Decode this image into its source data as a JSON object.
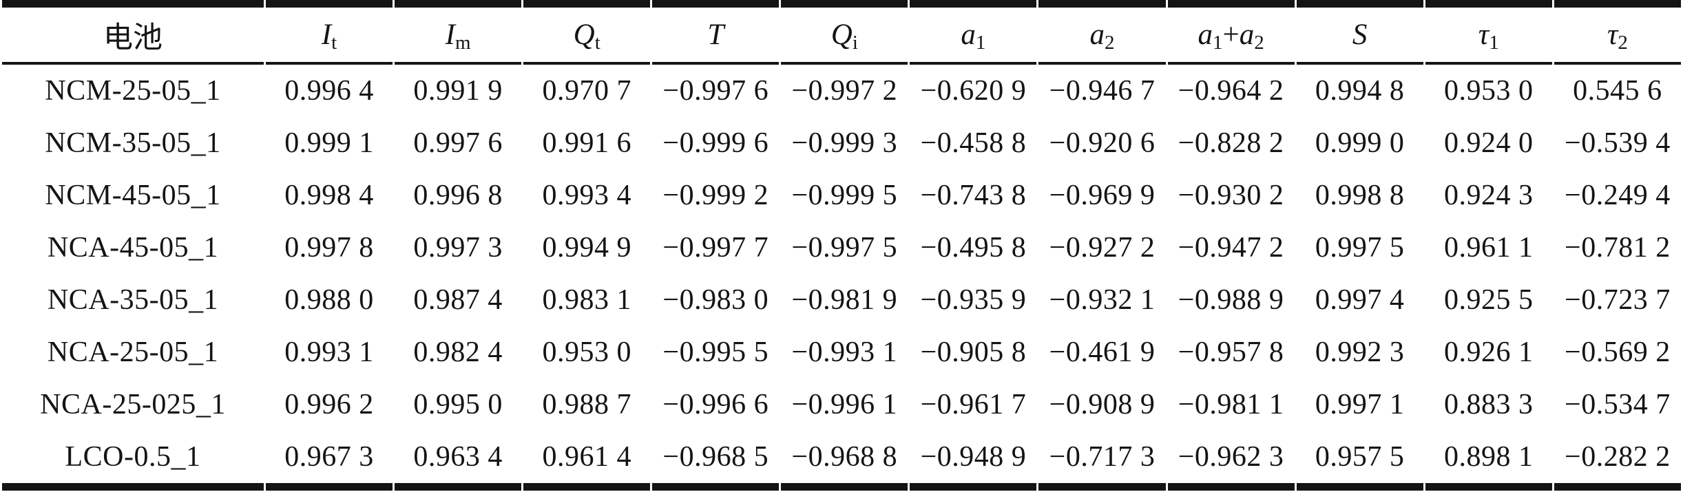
{
  "page": {
    "background": "#ffffff",
    "text_color": "#141414",
    "rule_color": "#141414"
  },
  "table": {
    "headers": [
      {
        "id": "battery",
        "parts": [
          {
            "text": "电池",
            "style": "normal"
          }
        ]
      },
      {
        "id": "I-t",
        "parts": [
          {
            "text": "I",
            "style": "italic"
          },
          {
            "text": "t",
            "style": "sub"
          }
        ]
      },
      {
        "id": "I-m",
        "parts": [
          {
            "text": "I",
            "style": "italic"
          },
          {
            "text": "m",
            "style": "sub"
          }
        ]
      },
      {
        "id": "Q-t",
        "parts": [
          {
            "text": "Q",
            "style": "italic"
          },
          {
            "text": "t",
            "style": "sub"
          }
        ]
      },
      {
        "id": "T",
        "parts": [
          {
            "text": "T",
            "style": "italic"
          }
        ]
      },
      {
        "id": "Q-i",
        "parts": [
          {
            "text": "Q",
            "style": "italic"
          },
          {
            "text": "i",
            "style": "sub"
          }
        ]
      },
      {
        "id": "a1",
        "parts": [
          {
            "text": "a",
            "style": "italic"
          },
          {
            "text": "1",
            "style": "sub"
          }
        ]
      },
      {
        "id": "a2",
        "parts": [
          {
            "text": "a",
            "style": "italic"
          },
          {
            "text": "2",
            "style": "sub"
          }
        ]
      },
      {
        "id": "a1-plus-a2",
        "parts": [
          {
            "text": "a",
            "style": "italic"
          },
          {
            "text": "1",
            "style": "sub"
          },
          {
            "text": "+",
            "style": "normal"
          },
          {
            "text": "a",
            "style": "italic"
          },
          {
            "text": "2",
            "style": "sub"
          }
        ]
      },
      {
        "id": "S",
        "parts": [
          {
            "text": "S",
            "style": "italic"
          }
        ]
      },
      {
        "id": "tau1",
        "parts": [
          {
            "text": "τ",
            "style": "italic"
          },
          {
            "text": "1",
            "style": "sub"
          }
        ]
      },
      {
        "id": "tau2",
        "parts": [
          {
            "text": "τ",
            "style": "italic"
          },
          {
            "text": "2",
            "style": "sub"
          }
        ]
      }
    ],
    "rows": [
      {
        "battery": "NCM-25-05_1",
        "values": [
          "0.996 4",
          "0.991 9",
          "0.970 7",
          "−0.997 6",
          "−0.997 2",
          "−0.620 9",
          "−0.946 7",
          "−0.964 2",
          "0.994 8",
          "0.953 0",
          "0.545 6"
        ]
      },
      {
        "battery": "NCM-35-05_1",
        "values": [
          "0.999 1",
          "0.997 6",
          "0.991 6",
          "−0.999 6",
          "−0.999 3",
          "−0.458 8",
          "−0.920 6",
          "−0.828 2",
          "0.999 0",
          "0.924 0",
          "−0.539 4"
        ]
      },
      {
        "battery": "NCM-45-05_1",
        "values": [
          "0.998 4",
          "0.996 8",
          "0.993 4",
          "−0.999 2",
          "−0.999 5",
          "−0.743 8",
          "−0.969 9",
          "−0.930 2",
          "0.998 8",
          "0.924 3",
          "−0.249 4"
        ]
      },
      {
        "battery": "NCA-45-05_1",
        "values": [
          "0.997 8",
          "0.997 3",
          "0.994 9",
          "−0.997 7",
          "−0.997 5",
          "−0.495 8",
          "−0.927 2",
          "−0.947 2",
          "0.997 5",
          "0.961 1",
          "−0.781 2"
        ]
      },
      {
        "battery": "NCA-35-05_1",
        "values": [
          "0.988 0",
          "0.987 4",
          "0.983 1",
          "−0.983 0",
          "−0.981 9",
          "−0.935 9",
          "−0.932 1",
          "−0.988 9",
          "0.997 4",
          "0.925 5",
          "−0.723 7"
        ]
      },
      {
        "battery": "NCA-25-05_1",
        "values": [
          "0.993 1",
          "0.982 4",
          "0.953 0",
          "−0.995 5",
          "−0.993 1",
          "−0.905 8",
          "−0.461 9",
          "−0.957 8",
          "0.992 3",
          "0.926 1",
          "−0.569 2"
        ]
      },
      {
        "battery": "NCA-25-025_1",
        "values": [
          "0.996 2",
          "0.995 0",
          "0.988 7",
          "−0.996 6",
          "−0.996 1",
          "−0.961 7",
          "−0.908 9",
          "−0.981 1",
          "0.997 1",
          "0.883 3",
          "−0.534 7"
        ]
      },
      {
        "battery": "LCO-0.5_1",
        "values": [
          "0.967 3",
          "0.963 4",
          "0.961 4",
          "−0.968 5",
          "−0.968 8",
          "−0.948 9",
          "−0.717 3",
          "−0.962 3",
          "0.957 5",
          "0.898 1",
          "−0.282 2"
        ]
      }
    ]
  }
}
